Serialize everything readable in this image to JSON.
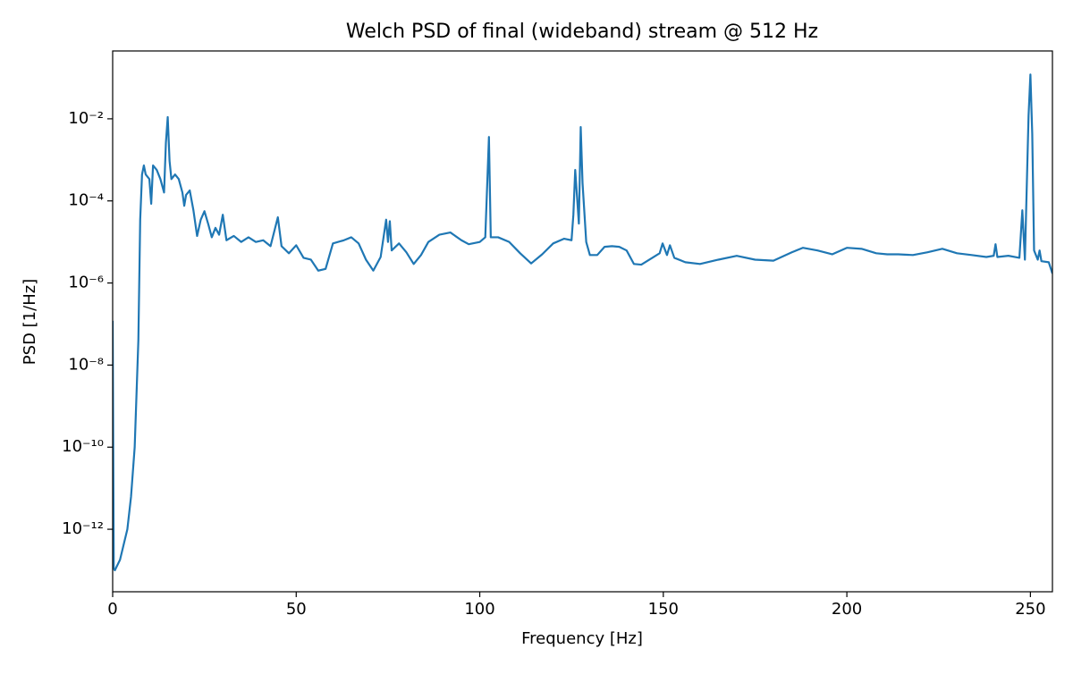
{
  "chart_data": {
    "type": "line",
    "title": "Welch PSD of final (wideband) stream @ 512 Hz",
    "x_label": "Frequency [Hz]",
    "y_label": "PSD [1/Hz]",
    "y_scale": "log",
    "xlim": [
      0,
      256
    ],
    "ylim": [
      3e-14,
      0.45
    ],
    "xticks": [
      0,
      50,
      100,
      150,
      200,
      250
    ],
    "yticks": [
      {
        "value": 1e-12,
        "label": "10⁻¹²"
      },
      {
        "value": 1e-10,
        "label": "10⁻¹⁰"
      },
      {
        "value": 1e-08,
        "label": "10⁻⁸"
      },
      {
        "value": 1e-06,
        "label": "10⁻⁶"
      },
      {
        "value": 0.0001,
        "label": "10⁻⁴"
      },
      {
        "value": 0.01,
        "label": "10⁻²"
      }
    ],
    "grid": false,
    "x": [
      0,
      0.3,
      0.6,
      2,
      4,
      5,
      6,
      7,
      7.5,
      8,
      8.5,
      9,
      10,
      10.5,
      11,
      12,
      13,
      14,
      14.5,
      15,
      15.5,
      16,
      17,
      18,
      19,
      19.5,
      20,
      21,
      22,
      23,
      24,
      25,
      26,
      27,
      28,
      29,
      30,
      31,
      33,
      35,
      37,
      39,
      41,
      43,
      45,
      46,
      48,
      50,
      52,
      54,
      56,
      58,
      60,
      63,
      65,
      67,
      69,
      71,
      73,
      74.5,
      75,
      75.5,
      76,
      78,
      80,
      82,
      84,
      86,
      89,
      92,
      95,
      97,
      100,
      101.5,
      102.5,
      103,
      105,
      108,
      111,
      114,
      117,
      120,
      123,
      125,
      125.5,
      126,
      127,
      127.5,
      128,
      129,
      130,
      132,
      134,
      136,
      138,
      140,
      142,
      144,
      147,
      149,
      149.8,
      151,
      151.8,
      153,
      156,
      160,
      165,
      170,
      175,
      180,
      185,
      188,
      192,
      196,
      200,
      204,
      208,
      211,
      214,
      218,
      222,
      226,
      230,
      234,
      238,
      240,
      240.5,
      241,
      244,
      247,
      247.8,
      248.5,
      249.5,
      250,
      250.5,
      251,
      252,
      252.5,
      253,
      255,
      256
    ],
    "series": [
      {
        "name": "PSD",
        "color": "#1f77b4",
        "values": [
          1.2e-07,
          1.1e-13,
          1e-13,
          1.8e-13,
          1e-12,
          6.2e-12,
          1e-10,
          4e-08,
          3.5e-05,
          0.00044,
          0.00073,
          0.00044,
          0.00034,
          8.5e-05,
          0.00073,
          0.00057,
          0.00034,
          0.00016,
          0.0026,
          0.011,
          0.00094,
          0.00034,
          0.00044,
          0.00034,
          0.00016,
          7.6e-05,
          0.00014,
          0.00018,
          5.9e-05,
          1.4e-05,
          3.5e-05,
          5.6e-05,
          2.8e-05,
          1.3e-05,
          2.2e-05,
          1.5e-05,
          4.6e-05,
          1.1e-05,
          1.4e-05,
          1e-05,
          1.3e-05,
          1e-05,
          1.1e-05,
          7.9e-06,
          4e-05,
          7.9e-06,
          5.3e-06,
          8.3e-06,
          4.1e-06,
          3.7e-06,
          2e-06,
          2.2e-06,
          9.2e-06,
          1.1e-05,
          1.3e-05,
          9.2e-06,
          3.7e-06,
          2e-06,
          4.3e-06,
          3.5e-05,
          1e-05,
          3.2e-05,
          6.2e-06,
          9.2e-06,
          5.6e-06,
          2.9e-06,
          4.8e-06,
          1e-05,
          1.5e-05,
          1.7e-05,
          1.1e-05,
          8.8e-06,
          1e-05,
          1.3e-05,
          0.0036,
          1.3e-05,
          1.3e-05,
          1e-05,
          5.3e-06,
          3e-06,
          5e-06,
          9.2e-06,
          1.2e-05,
          1.1e-05,
          4.6e-05,
          0.00057,
          2.8e-05,
          0.0063,
          0.00027,
          1e-05,
          4.8e-06,
          4.8e-06,
          7.6e-06,
          7.9e-06,
          7.6e-06,
          6.2e-06,
          2.9e-06,
          2.8e-06,
          4.1e-06,
          5.3e-06,
          9.2e-06,
          4.8e-06,
          8.3e-06,
          4.1e-06,
          3.2e-06,
          2.9e-06,
          3.7e-06,
          4.6e-06,
          3.7e-06,
          3.5e-06,
          5.6e-06,
          7.2e-06,
          6.2e-06,
          5e-06,
          7.2e-06,
          6.8e-06,
          5.3e-06,
          5e-06,
          5e-06,
          4.8e-06,
          5.6e-06,
          6.8e-06,
          5.3e-06,
          4.8e-06,
          4.3e-06,
          4.6e-06,
          8.8e-06,
          4.3e-06,
          4.6e-06,
          4.1e-06,
          5.9e-05,
          3.7e-06,
          0.012,
          0.12,
          0.0043,
          6.2e-06,
          3.7e-06,
          6.2e-06,
          3.4e-06,
          3.2e-06,
          1.7e-06
        ]
      }
    ]
  }
}
